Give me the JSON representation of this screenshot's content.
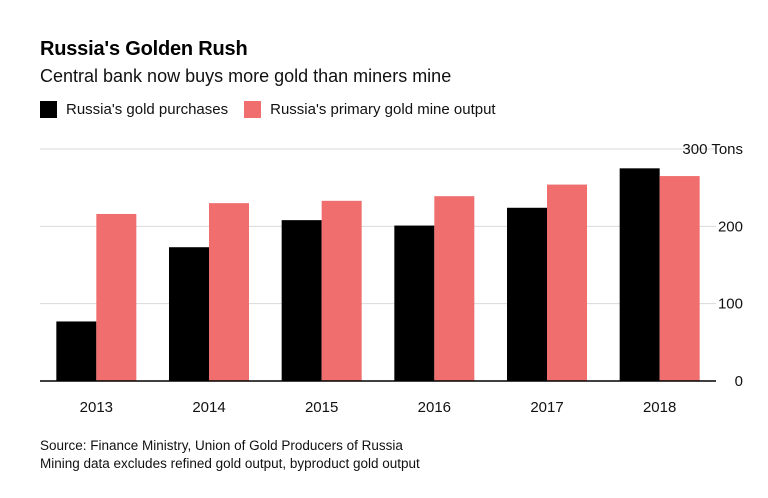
{
  "header": {
    "title": "Russia's Golden Rush",
    "subtitle": "Central bank now buys more gold than miners mine"
  },
  "footer": {
    "source": "Source: Finance Ministry, Union of Gold Producers of Russia",
    "note": "Mining data excludes refined gold output, byproduct gold output"
  },
  "colors": {
    "purchases": "#000000",
    "mine_output": "#f06e6e",
    "grid": "#d9d9d9",
    "axis": "#000000"
  },
  "chart_data": {
    "type": "bar",
    "title": "Russia's Golden Rush",
    "subtitle": "Central bank now buys more gold than miners mine",
    "categories": [
      "2013",
      "2014",
      "2015",
      "2016",
      "2017",
      "2018"
    ],
    "series": [
      {
        "name": "Russia's gold purchases",
        "values": [
          77,
          173,
          208,
          201,
          224,
          275
        ]
      },
      {
        "name": "Russia's primary gold mine output",
        "values": [
          216,
          230,
          233,
          239,
          254,
          265
        ]
      }
    ],
    "ylim": [
      0,
      300
    ],
    "yticks": [
      0,
      100,
      200,
      300
    ],
    "ytick_labels": [
      "0",
      "100",
      "200",
      "300 Tons"
    ],
    "y_axis_side": "right",
    "grid": true,
    "legend_position": "top-left"
  }
}
